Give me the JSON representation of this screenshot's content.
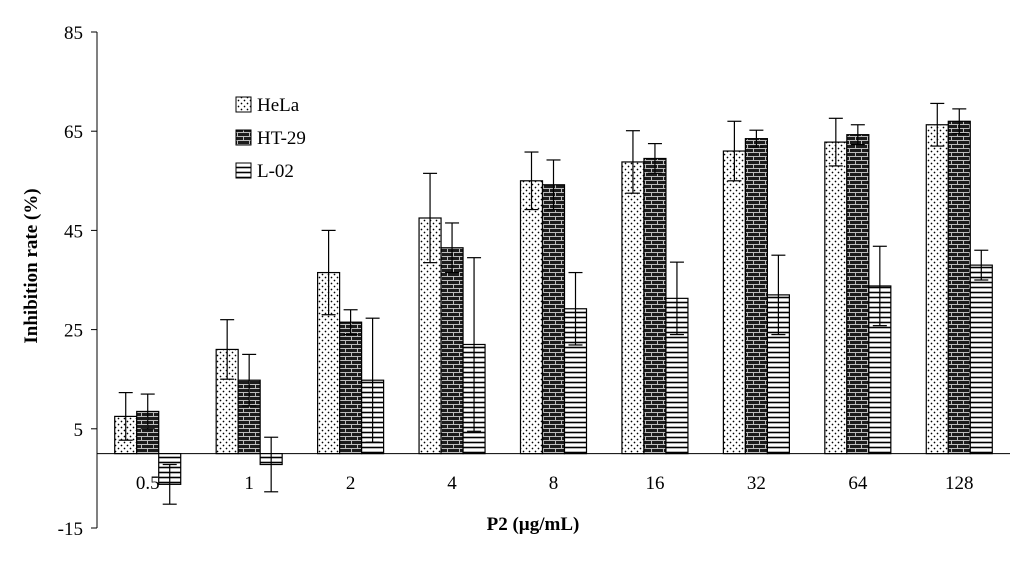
{
  "chart_data": {
    "type": "bar",
    "title": "",
    "xlabel": "P2 (µg/mL)",
    "ylabel": "Inhibition rate (%)",
    "ylim": [
      -15,
      85
    ],
    "yticks": [
      -15,
      5,
      25,
      45,
      65,
      85
    ],
    "categories": [
      "0.5",
      "1",
      "2",
      "4",
      "8",
      "16",
      "32",
      "64",
      "128"
    ],
    "legend_position": "top-left",
    "series": [
      {
        "name": "HeLa",
        "pattern": "dots",
        "values": [
          7.5,
          21,
          36.5,
          47.5,
          55,
          58.8,
          61,
          62.8,
          66.3
        ],
        "errors": [
          4.8,
          6,
          8.5,
          9,
          5.8,
          6.3,
          6,
          4.8,
          4.3
        ]
      },
      {
        "name": "HT-29",
        "pattern": "bricks",
        "values": [
          8.5,
          14.8,
          26.5,
          41.5,
          54.2,
          59.5,
          63.5,
          64.3,
          67
        ],
        "errors": [
          3.5,
          5.2,
          2.5,
          5,
          5,
          3,
          1.7,
          2,
          2.5
        ]
      },
      {
        "name": "L-02",
        "pattern": "hlines",
        "values": [
          -6.2,
          -2.2,
          14.8,
          22,
          29.2,
          31.3,
          32,
          33.8,
          38
        ],
        "errors": [
          4,
          5.5,
          12.5,
          17.5,
          7.3,
          7.3,
          8,
          8,
          3
        ]
      }
    ]
  }
}
